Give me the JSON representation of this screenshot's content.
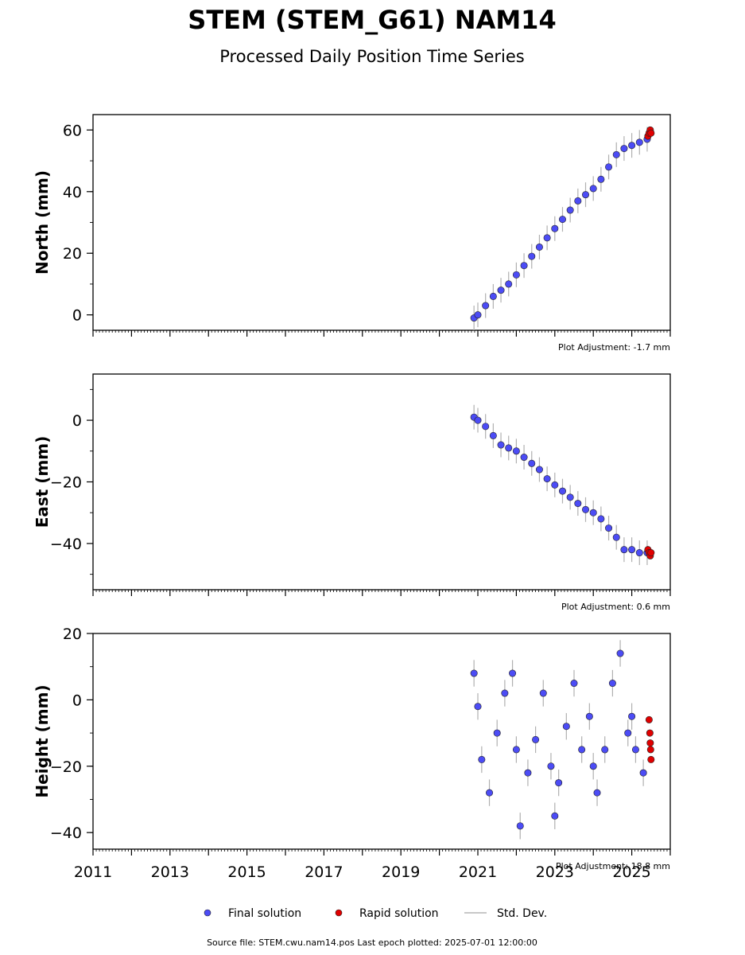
{
  "title": "STEM (STEM_G61) NAM14",
  "subtitle": "Processed Daily Position Time Series",
  "footer": "Source file: STEM.cwu.nam14.pos  Last epoch plotted: 2025-07-01 12:00:00",
  "legend": {
    "final": "Final solution",
    "rapid": "Rapid solution",
    "std": "Std. Dev."
  },
  "colors": {
    "final": "#4c4cf5",
    "rapid": "#e00000",
    "std": "#b0b0b0"
  },
  "chart_data": [
    {
      "type": "scatter",
      "ylabel": "North (mm)",
      "adjustment": "Plot Adjustment: -1.7 mm",
      "xlim": [
        2011,
        2026
      ],
      "ylim": [
        -5,
        65
      ],
      "yticks": [
        0,
        20,
        40,
        60
      ],
      "ytick_labels": [
        "0",
        "20",
        "40",
        "60"
      ],
      "xticks": [
        2011,
        2013,
        2015,
        2017,
        2019,
        2021,
        2023,
        2025
      ],
      "xtick_labels": [],
      "final": {
        "x": [
          2020.9,
          2021.0,
          2021.2,
          2021.4,
          2021.6,
          2021.8,
          2022.0,
          2022.2,
          2022.4,
          2022.6,
          2022.8,
          2023.0,
          2023.2,
          2023.4,
          2023.6,
          2023.8,
          2024.0,
          2024.2,
          2024.4,
          2024.6,
          2024.8,
          2025.0,
          2025.2,
          2025.4
        ],
        "y": [
          -1,
          0,
          3,
          6,
          8,
          10,
          13,
          16,
          19,
          22,
          25,
          28,
          31,
          34,
          37,
          39,
          41,
          44,
          48,
          52,
          54,
          55,
          56,
          57
        ]
      },
      "rapid": {
        "x": [
          2025.42,
          2025.45,
          2025.48,
          2025.5
        ],
        "y": [
          58,
          59,
          60,
          59
        ]
      }
    },
    {
      "type": "scatter",
      "ylabel": "East (mm)",
      "adjustment": "Plot Adjustment: 0.6 mm",
      "xlim": [
        2011,
        2026
      ],
      "ylim": [
        -55,
        15
      ],
      "yticks": [
        0,
        -20,
        -40
      ],
      "ytick_labels": [
        "0",
        "−20",
        "−40"
      ],
      "xticks": [
        2011,
        2013,
        2015,
        2017,
        2019,
        2021,
        2023,
        2025
      ],
      "xtick_labels": [],
      "final": {
        "x": [
          2020.9,
          2021.0,
          2021.2,
          2021.4,
          2021.6,
          2021.8,
          2022.0,
          2022.2,
          2022.4,
          2022.6,
          2022.8,
          2023.0,
          2023.2,
          2023.4,
          2023.6,
          2023.8,
          2024.0,
          2024.2,
          2024.4,
          2024.6,
          2024.8,
          2025.0,
          2025.2,
          2025.4
        ],
        "y": [
          1,
          0,
          -2,
          -5,
          -8,
          -9,
          -10,
          -12,
          -14,
          -16,
          -19,
          -21,
          -23,
          -25,
          -27,
          -29,
          -30,
          -32,
          -35,
          -38,
          -42,
          -42,
          -43,
          -43
        ]
      },
      "rapid": {
        "x": [
          2025.42,
          2025.45,
          2025.48,
          2025.5
        ],
        "y": [
          -42,
          -43,
          -44,
          -43
        ]
      }
    },
    {
      "type": "scatter",
      "ylabel": "Height (mm)",
      "adjustment": "Plot Adjustment: 18.8 mm",
      "xlim": [
        2011,
        2026
      ],
      "ylim": [
        -45,
        20
      ],
      "yticks": [
        20,
        0,
        -20,
        -40
      ],
      "ytick_labels": [
        "20",
        "0",
        "−20",
        "−40"
      ],
      "xticks": [
        2011,
        2013,
        2015,
        2017,
        2019,
        2021,
        2023,
        2025
      ],
      "xtick_labels": [
        "2011",
        "2013",
        "2015",
        "2017",
        "2019",
        "2021",
        "2023",
        "2025"
      ],
      "final": {
        "x": [
          2020.9,
          2021.0,
          2021.1,
          2021.3,
          2021.5,
          2021.7,
          2021.9,
          2022.0,
          2022.1,
          2022.3,
          2022.5,
          2022.7,
          2022.9,
          2023.0,
          2023.1,
          2023.3,
          2023.5,
          2023.7,
          2023.9,
          2024.0,
          2024.1,
          2024.3,
          2024.5,
          2024.7,
          2024.9,
          2025.0,
          2025.1,
          2025.3
        ],
        "y": [
          8,
          -2,
          -18,
          -28,
          -10,
          2,
          8,
          -15,
          -38,
          -22,
          -12,
          2,
          -20,
          -35,
          -25,
          -8,
          5,
          -15,
          -5,
          -20,
          -28,
          -15,
          5,
          14,
          -10,
          -5,
          -15,
          -22
        ]
      },
      "rapid": {
        "x": [
          2025.45,
          2025.47,
          2025.48,
          2025.49,
          2025.5
        ],
        "y": [
          -6,
          -10,
          -13,
          -15,
          -18
        ]
      }
    }
  ]
}
